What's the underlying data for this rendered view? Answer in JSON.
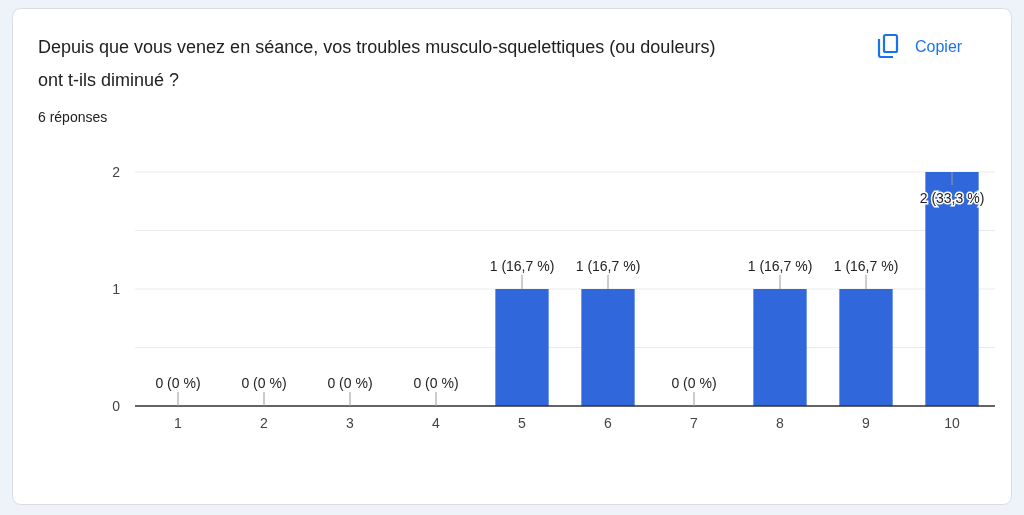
{
  "chart_data": {
    "type": "bar",
    "title": "Depuis que vous venez en séance, vos troubles musculo-squelettiques (ou douleurs) ont t-ils diminué ?",
    "subtitle": "6 réponses",
    "annotations": [
      "Copier"
    ],
    "categories": [
      "1",
      "2",
      "3",
      "4",
      "5",
      "6",
      "7",
      "8",
      "9",
      "10"
    ],
    "values": [
      0,
      0,
      0,
      0,
      1,
      1,
      0,
      1,
      1,
      2
    ],
    "color": "#3067da",
    "value_labels": [
      "0 (0 %)",
      "0 (0 %)",
      "0 (0 %)",
      "0 (0 %)",
      "1 (16,7 %)",
      "1 (16,7 %)",
      "0 (0 %)",
      "1 (16,7 %)",
      "1 (16,7 %)",
      "2 (33,3 %)"
    ],
    "ylim": [
      0,
      2
    ],
    "yticks": [
      0,
      {
        "value": 0.5,
        "label": null
      },
      1,
      {
        "value": 1.5,
        "label": null
      },
      2
    ],
    "grid": "y"
  }
}
